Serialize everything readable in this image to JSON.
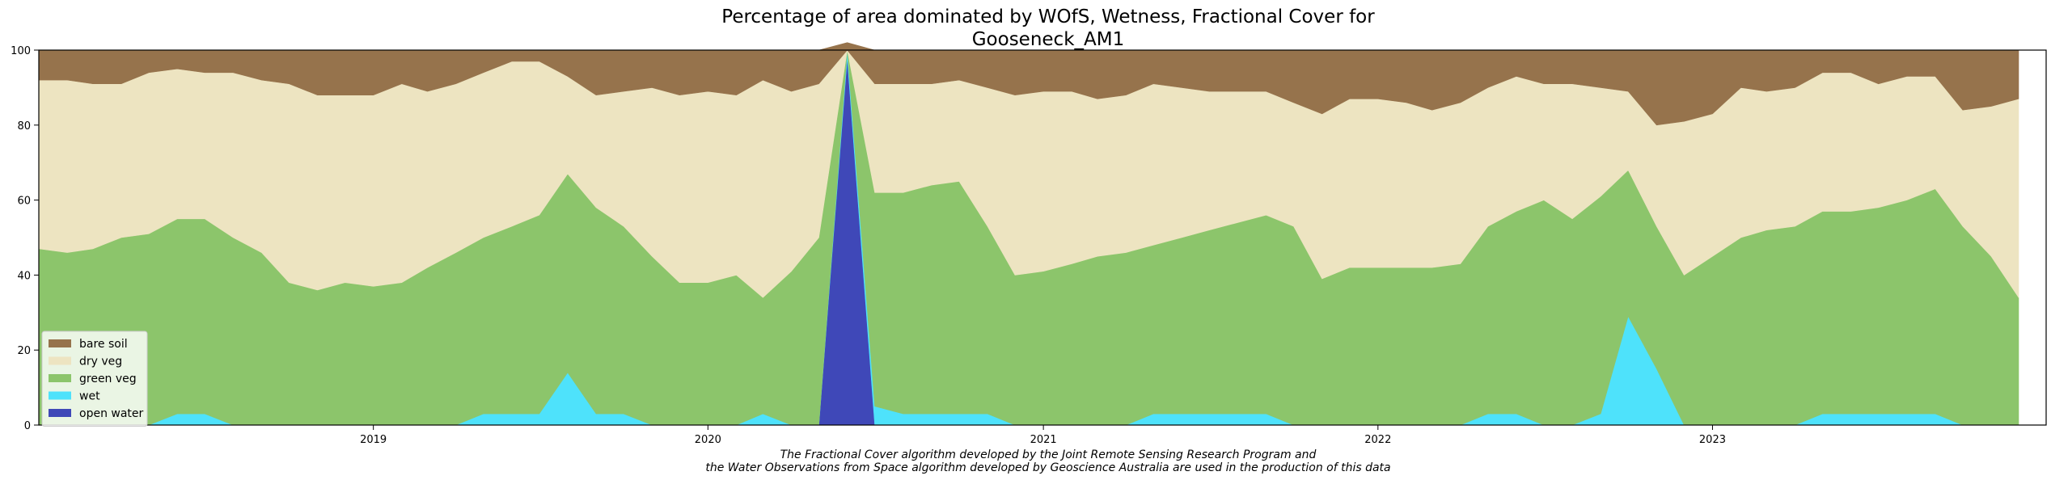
{
  "chart_data": {
    "type": "area",
    "stacked": true,
    "title_lines": [
      "Percentage of area dominated by WOfS, Wetness, Fractional Cover for",
      "Gooseneck_AM1"
    ],
    "xlabel": "",
    "ylabel": "",
    "x_start": "2018-01-01",
    "x_end": "2023-12-31",
    "ylim": [
      0,
      100
    ],
    "yticks": [
      0,
      20,
      40,
      60,
      80,
      100
    ],
    "xticks": [
      {
        "label": "2019",
        "date": "2019-01-01"
      },
      {
        "label": "2020",
        "date": "2020-01-01"
      },
      {
        "label": "2021",
        "date": "2021-01-01"
      },
      {
        "label": "2022",
        "date": "2022-01-01"
      },
      {
        "label": "2023",
        "date": "2023-01-01"
      }
    ],
    "grid": false,
    "legend_position": "lower-left",
    "dates": [
      "2018-01-01",
      "2018-02-01",
      "2018-03-01",
      "2018-04-01",
      "2018-05-01",
      "2018-06-01",
      "2018-07-01",
      "2018-08-01",
      "2018-09-01",
      "2018-10-01",
      "2018-11-01",
      "2018-12-01",
      "2019-01-01",
      "2019-02-01",
      "2019-03-01",
      "2019-04-01",
      "2019-05-01",
      "2019-06-01",
      "2019-07-01",
      "2019-08-01",
      "2019-09-01",
      "2019-10-01",
      "2019-11-01",
      "2019-12-01",
      "2020-01-01",
      "2020-02-01",
      "2020-03-01",
      "2020-04-01",
      "2020-05-01",
      "2020-06-01",
      "2020-07-01",
      "2020-08-01",
      "2020-09-01",
      "2020-10-01",
      "2020-11-01",
      "2020-12-01",
      "2021-01-01",
      "2021-02-01",
      "2021-03-01",
      "2021-04-01",
      "2021-05-01",
      "2021-06-01",
      "2021-07-01",
      "2021-08-01",
      "2021-09-01",
      "2021-10-01",
      "2021-11-01",
      "2021-12-01",
      "2022-01-01",
      "2022-02-01",
      "2022-03-01",
      "2022-04-01",
      "2022-05-01",
      "2022-06-01",
      "2022-07-01",
      "2022-08-01",
      "2022-09-01",
      "2022-10-01",
      "2022-11-01",
      "2022-12-01",
      "2023-01-01",
      "2023-02-01",
      "2023-03-01",
      "2023-04-01",
      "2023-05-01",
      "2023-06-01",
      "2023-07-01",
      "2023-08-01",
      "2023-09-01",
      "2023-10-01",
      "2023-11-01",
      "2023-12-01"
    ],
    "series": [
      {
        "name": "open water",
        "color": "#3f48b8",
        "values": [
          0,
          0,
          0,
          0,
          0,
          0,
          0,
          0,
          0,
          0,
          0,
          0,
          0,
          0,
          0,
          0,
          0,
          0,
          0,
          0,
          0,
          0,
          0,
          0,
          0,
          0,
          0,
          0,
          0,
          98,
          0,
          0,
          0,
          0,
          0,
          0,
          0,
          0,
          0,
          0,
          0,
          0,
          0,
          0,
          0,
          0,
          0,
          0,
          0,
          0,
          0,
          0,
          0,
          0,
          0,
          0,
          0,
          0,
          0,
          0,
          0,
          0,
          0,
          0,
          0,
          0,
          0,
          0,
          0,
          0,
          0,
          0
        ]
      },
      {
        "name": "wet",
        "color": "#4ee2fb",
        "values": [
          0,
          0,
          0,
          0,
          0,
          3,
          3,
          0,
          0,
          0,
          0,
          0,
          0,
          0,
          0,
          0,
          3,
          3,
          3,
          14,
          3,
          3,
          0,
          0,
          0,
          0,
          3,
          0,
          0,
          2,
          5,
          3,
          3,
          3,
          3,
          0,
          0,
          0,
          0,
          0,
          3,
          3,
          3,
          3,
          3,
          0,
          0,
          0,
          0,
          0,
          0,
          0,
          3,
          3,
          0,
          0,
          3,
          29,
          15,
          0,
          0,
          0,
          0,
          0,
          3,
          3,
          3,
          3,
          3,
          0,
          0,
          0
        ]
      },
      {
        "name": "green veg",
        "color": "#8cc56b",
        "values": [
          47,
          46,
          47,
          50,
          51,
          52,
          52,
          50,
          46,
          38,
          36,
          38,
          37,
          38,
          42,
          46,
          47,
          50,
          53,
          53,
          55,
          50,
          45,
          38,
          38,
          40,
          31,
          41,
          50,
          0,
          57,
          59,
          61,
          62,
          50,
          40,
          41,
          43,
          45,
          46,
          45,
          47,
          49,
          51,
          53,
          53,
          39,
          42,
          42,
          42,
          42,
          43,
          50,
          54,
          60,
          55,
          58,
          39,
          38,
          40,
          45,
          50,
          52,
          53,
          54,
          54,
          55,
          57,
          60,
          53,
          45,
          34
        ]
      },
      {
        "name": "dry veg",
        "color": "#ede4c1",
        "values": [
          45,
          46,
          44,
          41,
          43,
          40,
          39,
          44,
          46,
          53,
          52,
          50,
          51,
          53,
          47,
          45,
          44,
          44,
          41,
          26,
          30,
          36,
          45,
          50,
          51,
          48,
          58,
          48,
          41,
          0,
          29,
          29,
          27,
          27,
          37,
          48,
          48,
          46,
          42,
          42,
          43,
          40,
          37,
          35,
          33,
          33,
          44,
          45,
          45,
          44,
          42,
          43,
          37,
          36,
          31,
          36,
          29,
          21,
          27,
          41,
          38,
          40,
          37,
          37,
          37,
          37,
          33,
          33,
          30,
          31,
          40,
          53
        ]
      },
      {
        "name": "bare soil",
        "color": "#96734c",
        "values": [
          8,
          8,
          9,
          9,
          6,
          5,
          6,
          6,
          8,
          9,
          12,
          12,
          12,
          9,
          11,
          9,
          6,
          3,
          3,
          7,
          12,
          11,
          10,
          12,
          11,
          12,
          8,
          11,
          9,
          2,
          9,
          9,
          9,
          8,
          10,
          12,
          11,
          11,
          13,
          12,
          9,
          10,
          11,
          11,
          11,
          14,
          17,
          13,
          13,
          14,
          16,
          14,
          10,
          7,
          9,
          9,
          10,
          11,
          20,
          19,
          17,
          10,
          11,
          10,
          6,
          6,
          9,
          7,
          7,
          16,
          15,
          13
        ]
      }
    ],
    "legend_order": [
      "bare soil",
      "dry veg",
      "green veg",
      "wet",
      "open water"
    ],
    "footnote_lines": [
      "The Fractional Cover algorithm developed by the Joint Remote Sensing Research Program and",
      "the Water Observations from Space algorithm developed by Geoscience Australia are used in the production of this data"
    ]
  }
}
